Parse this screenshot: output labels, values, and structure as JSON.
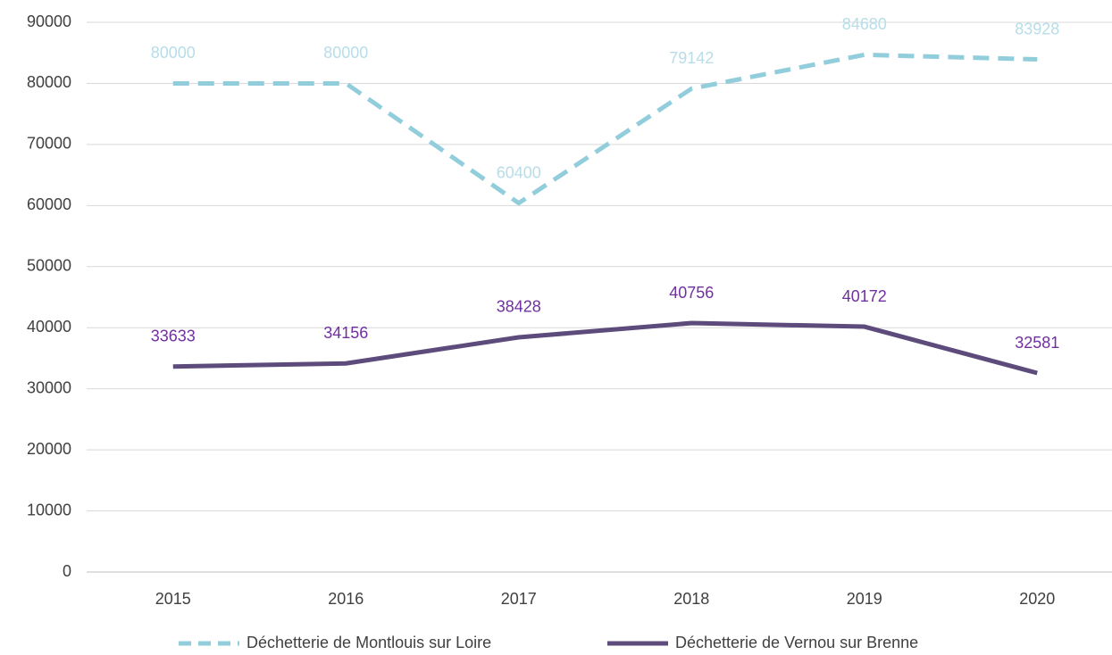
{
  "chart_data": {
    "type": "line",
    "categories": [
      "2015",
      "2016",
      "2017",
      "2018",
      "2019",
      "2020"
    ],
    "series": [
      {
        "name": "Déchetterie de Montlouis sur Loire",
        "color": "#92cddc",
        "label_color": "#b7dde8",
        "dash": true,
        "values": [
          80000,
          80000,
          60400,
          79142,
          84680,
          83928
        ]
      },
      {
        "name": "Déchetterie de Vernou sur Brenne",
        "color": "#5c4b7b",
        "label_color": "#7030a0",
        "dash": false,
        "values": [
          33633,
          34156,
          38428,
          40756,
          40172,
          32581
        ]
      }
    ],
    "ylim": [
      0,
      90000
    ],
    "yticks": [
      0,
      10000,
      20000,
      30000,
      40000,
      50000,
      60000,
      70000,
      80000,
      90000
    ],
    "grid": true,
    "data_labels": true,
    "legend": "bottom"
  }
}
